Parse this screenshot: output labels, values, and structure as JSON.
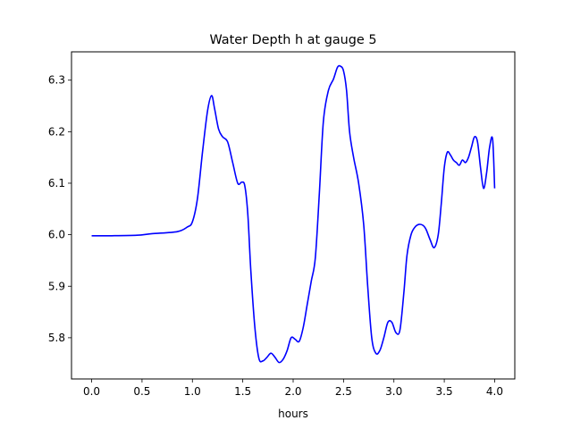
{
  "chart_data": {
    "type": "line",
    "title": "Water Depth h at gauge 5",
    "xlabel": "hours",
    "ylabel": "",
    "xlim": [
      -0.2,
      4.2
    ],
    "ylim": [
      5.72,
      6.355
    ],
    "grid": false,
    "xticks": [
      0.0,
      0.5,
      1.0,
      1.5,
      2.0,
      2.5,
      3.0,
      3.5,
      4.0
    ],
    "xtick_labels": [
      "0.0",
      "0.5",
      "1.0",
      "1.5",
      "2.0",
      "2.5",
      "3.0",
      "3.5",
      "4.0"
    ],
    "yticks": [
      5.8,
      5.9,
      6.0,
      6.1,
      6.2,
      6.3
    ],
    "ytick_labels": [
      "5.8",
      "5.9",
      "6.0",
      "6.1",
      "6.2",
      "6.3"
    ],
    "series": [
      {
        "color": "#0000ff",
        "x": [
          0.0,
          0.2,
          0.45,
          0.6,
          0.85,
          0.95,
          1.0,
          1.05,
          1.1,
          1.15,
          1.19,
          1.22,
          1.26,
          1.3,
          1.35,
          1.4,
          1.45,
          1.49,
          1.52,
          1.55,
          1.58,
          1.62,
          1.66,
          1.7,
          1.74,
          1.78,
          1.82,
          1.86,
          1.9,
          1.94,
          1.98,
          2.02,
          2.06,
          2.1,
          2.14,
          2.18,
          2.22,
          2.26,
          2.3,
          2.35,
          2.4,
          2.44,
          2.47,
          2.5,
          2.53,
          2.56,
          2.6,
          2.65,
          2.7,
          2.74,
          2.78,
          2.82,
          2.86,
          2.9,
          2.94,
          2.98,
          3.02,
          3.06,
          3.1,
          3.13,
          3.17,
          3.21,
          3.25,
          3.29,
          3.32,
          3.36,
          3.4,
          3.44,
          3.47,
          3.5,
          3.53,
          3.56,
          3.59,
          3.62,
          3.65,
          3.68,
          3.71,
          3.74,
          3.77,
          3.8,
          3.83,
          3.86,
          3.89,
          3.92,
          3.95,
          3.98,
          4.0
        ],
        "y": [
          5.998,
          5.998,
          5.999,
          6.002,
          6.006,
          6.015,
          6.025,
          6.07,
          6.16,
          6.24,
          6.27,
          6.245,
          6.205,
          6.19,
          6.18,
          6.14,
          6.1,
          6.102,
          6.095,
          6.04,
          5.93,
          5.82,
          5.76,
          5.755,
          5.762,
          5.77,
          5.762,
          5.752,
          5.758,
          5.775,
          5.8,
          5.797,
          5.793,
          5.82,
          5.865,
          5.91,
          5.955,
          6.08,
          6.22,
          6.28,
          6.302,
          6.325,
          6.327,
          6.318,
          6.28,
          6.2,
          6.15,
          6.1,
          6.02,
          5.9,
          5.8,
          5.77,
          5.775,
          5.8,
          5.83,
          5.83,
          5.81,
          5.815,
          5.89,
          5.96,
          6.0,
          6.015,
          6.02,
          6.018,
          6.01,
          5.99,
          5.975,
          6.0,
          6.06,
          6.13,
          6.16,
          6.155,
          6.145,
          6.14,
          6.135,
          6.145,
          6.14,
          6.15,
          6.17,
          6.19,
          6.18,
          6.13,
          6.09,
          6.12,
          6.17,
          6.185,
          6.09
        ]
      }
    ]
  }
}
